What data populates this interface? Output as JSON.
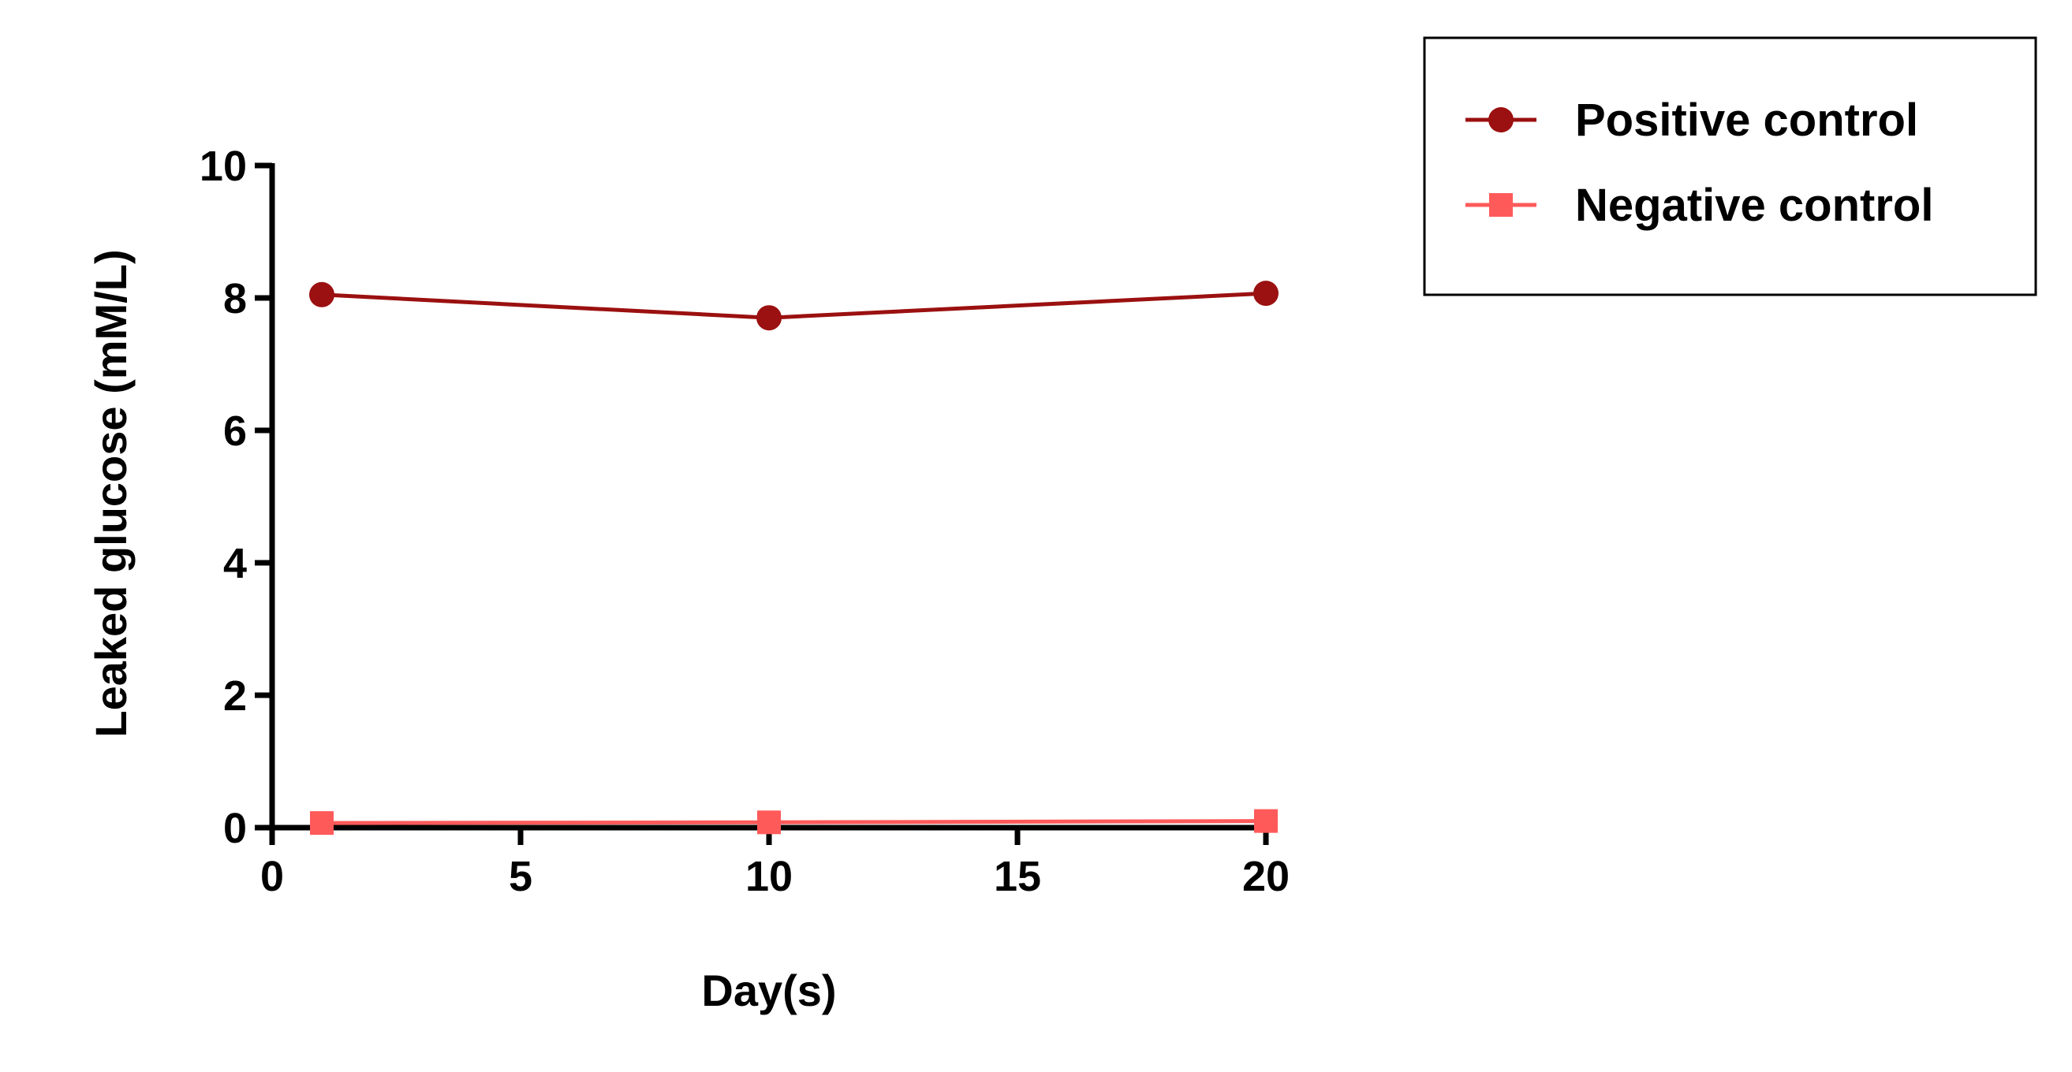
{
  "chart_data": {
    "type": "line",
    "xlabel": "Day(s)",
    "ylabel": "Leaked glucose (mM/L)",
    "xlim": [
      0,
      20
    ],
    "ylim": [
      0,
      10
    ],
    "x_ticks": [
      0,
      5,
      10,
      15,
      20
    ],
    "y_ticks": [
      0,
      2,
      4,
      6,
      8,
      10
    ],
    "grid": false,
    "legend_position": "top-right",
    "series": [
      {
        "name": "Positive control",
        "marker": "circle",
        "color": "#9b1010",
        "x": [
          1,
          10,
          20
        ],
        "y": [
          8.05,
          7.7,
          8.07
        ]
      },
      {
        "name": "Negative control",
        "marker": "square",
        "color": "#ff5a5a",
        "x": [
          1,
          10,
          20
        ],
        "y": [
          0.07,
          0.08,
          0.1
        ]
      }
    ]
  }
}
